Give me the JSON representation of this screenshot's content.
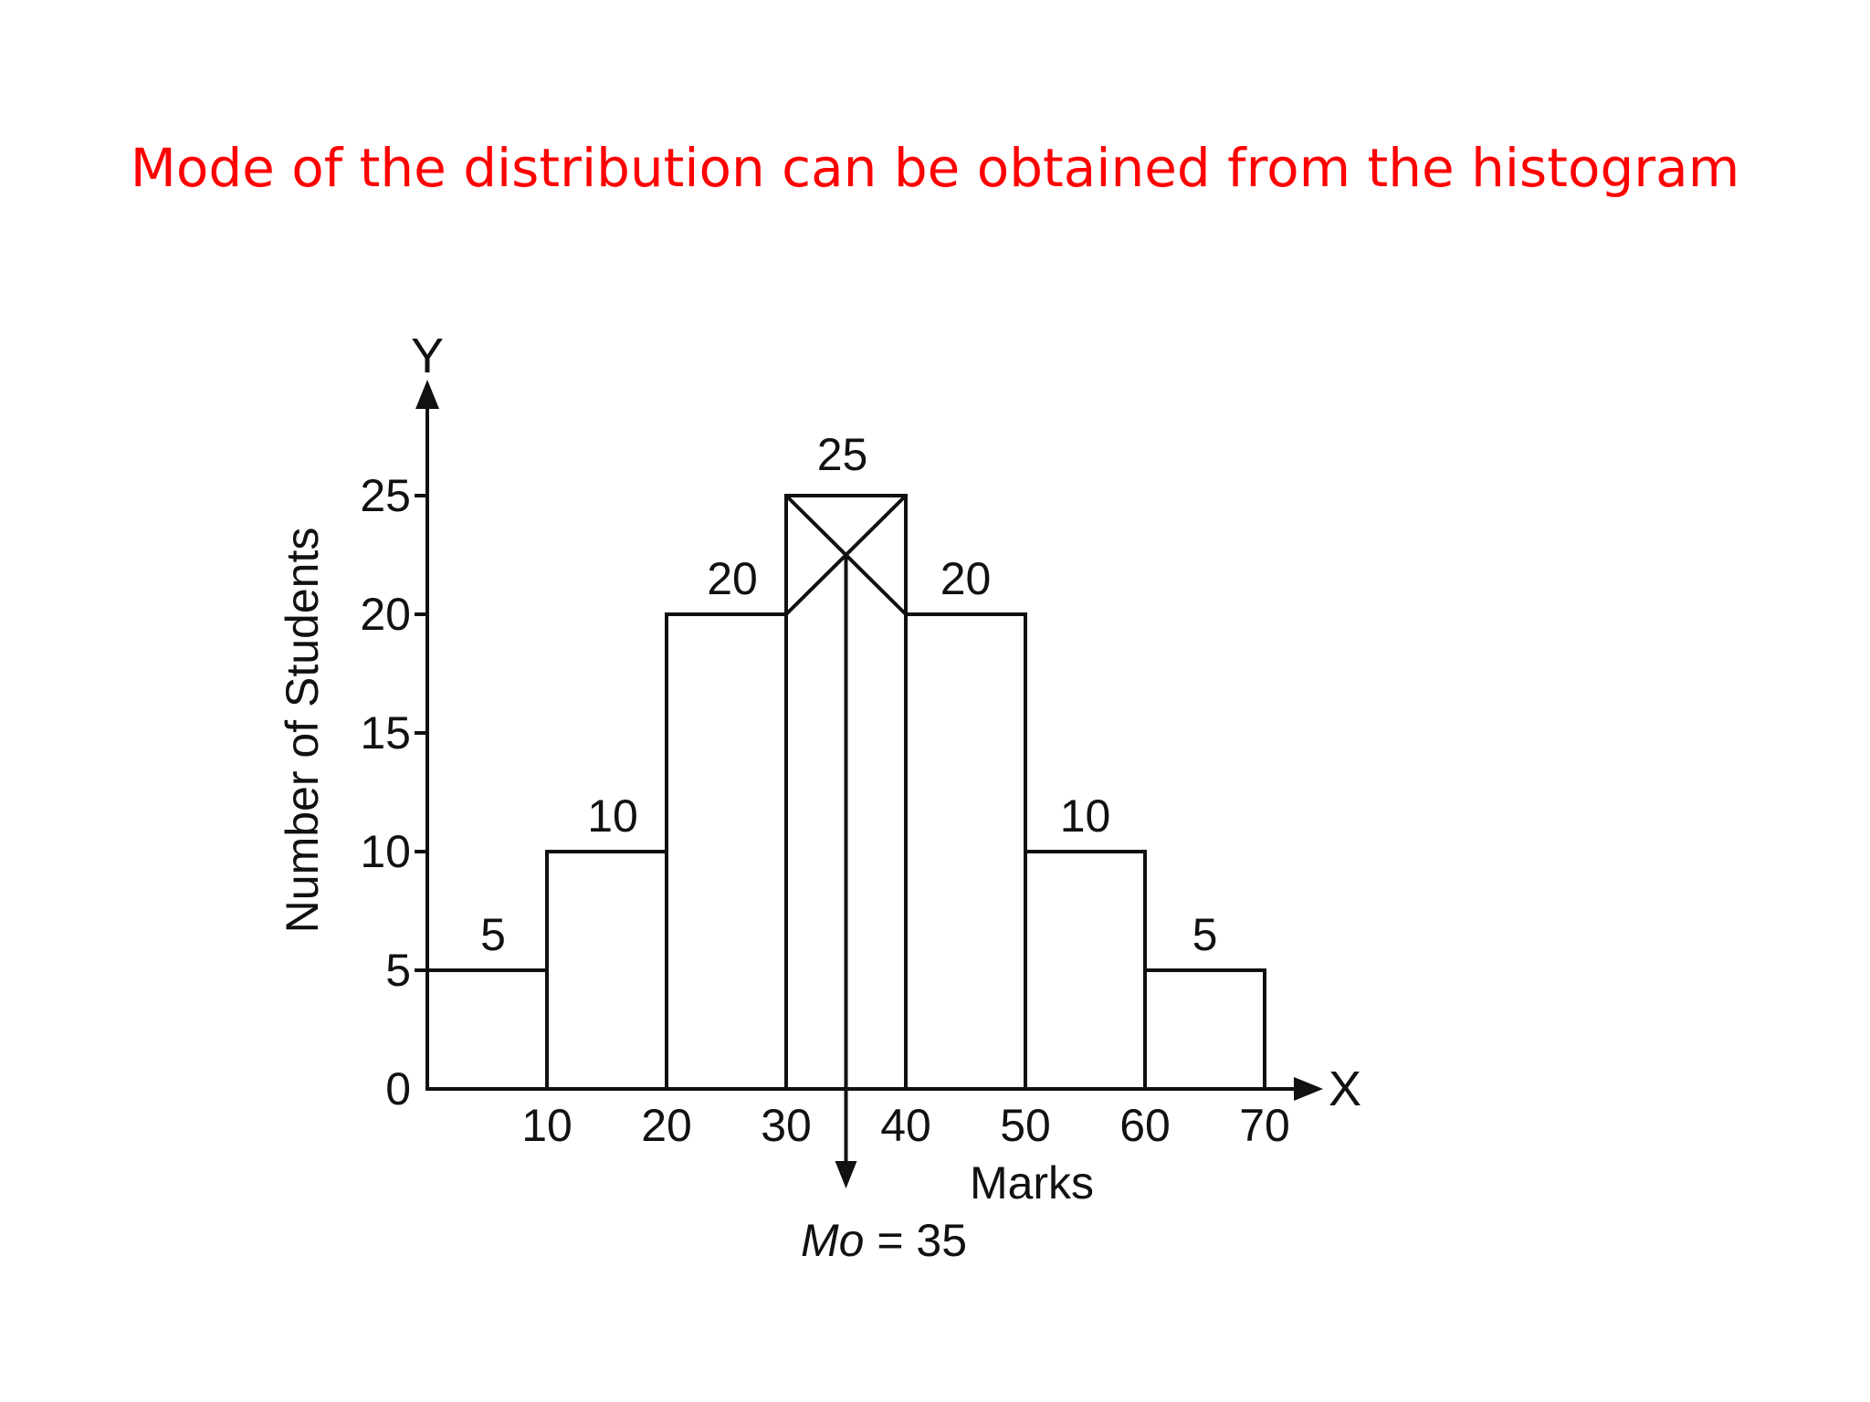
{
  "slide": {
    "title": "Mode of the distribution can be obtained from the histogram",
    "title_color": "#ff0000"
  },
  "chart_data": {
    "type": "bar",
    "subtype": "histogram",
    "class_edges": [
      0,
      10,
      20,
      30,
      40,
      50,
      60,
      70
    ],
    "values": [
      5,
      10,
      20,
      25,
      20,
      10,
      5
    ],
    "data_labels": [
      "5",
      "10",
      "20",
      "25",
      "20",
      "10",
      "5"
    ],
    "x_ticks": [
      "10",
      "20",
      "30",
      "40",
      "50",
      "60",
      "70"
    ],
    "y_ticks": [
      "0",
      "5",
      "10",
      "15",
      "20",
      "25"
    ],
    "y_tick_values": [
      0,
      5,
      10,
      15,
      20,
      25
    ],
    "xlabel": "Marks",
    "ylabel": "Number of Students",
    "x_axis_letter": "X",
    "y_axis_letter": "Y",
    "mode_annotation": "Mo = 35",
    "mode_value": 35,
    "modal_class": [
      30,
      40
    ],
    "xlim": [
      0,
      70
    ],
    "ylim": [
      0,
      25
    ],
    "grid": false,
    "bar_fill": "#ffffff",
    "line_color": "#111111"
  }
}
